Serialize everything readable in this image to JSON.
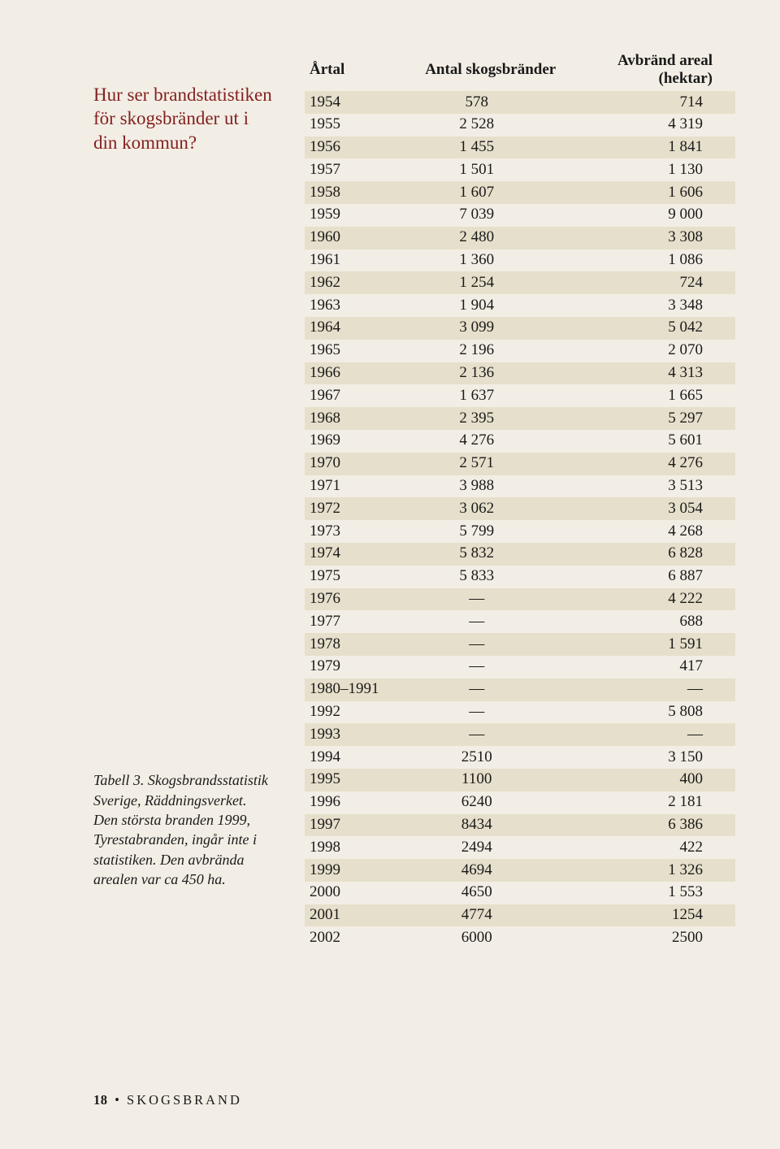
{
  "left": {
    "question": "Hur ser brand­statistiken för skogsbränder ut i din kommun?",
    "caption_html": "Tabell 3. Skogsbrands­statistik Sverige, Räddningsverket. Den största branden 1999, Tyrestabranden, ingår inte i statistiken. Den avbrända arealen var ca 450 ha."
  },
  "table": {
    "columns": [
      "Årtal",
      "Antal skogsbränder",
      "Avbränd areal (hektar)"
    ],
    "col_align": [
      "left",
      "center",
      "right"
    ],
    "header_background": "#f2eee5",
    "row_colors": {
      "odd": "#e6dfcb",
      "even": "#f2eee5"
    },
    "font_size": 19,
    "text_color": "#1a1a1a",
    "rows": [
      [
        "1954",
        "578",
        "714"
      ],
      [
        "1955",
        "2 528",
        "4 319"
      ],
      [
        "1956",
        "1 455",
        "1 841"
      ],
      [
        "1957",
        "1 501",
        "1 130"
      ],
      [
        "1958",
        "1 607",
        "1 606"
      ],
      [
        "1959",
        "7 039",
        "9 000"
      ],
      [
        "1960",
        "2 480",
        "3 308"
      ],
      [
        "1961",
        "1 360",
        "1 086"
      ],
      [
        "1962",
        "1 254",
        "724"
      ],
      [
        "1963",
        "1 904",
        "3 348"
      ],
      [
        "1964",
        "3 099",
        "5 042"
      ],
      [
        "1965",
        "2 196",
        "2 070"
      ],
      [
        "1966",
        "2 136",
        "4 313"
      ],
      [
        "1967",
        "1 637",
        "1 665"
      ],
      [
        "1968",
        "2 395",
        "5 297"
      ],
      [
        "1969",
        "4 276",
        "5 601"
      ],
      [
        "1970",
        "2 571",
        "4 276"
      ],
      [
        "1971",
        "3 988",
        "3 513"
      ],
      [
        "1972",
        "3 062",
        "3 054"
      ],
      [
        "1973",
        "5 799",
        "4 268"
      ],
      [
        "1974",
        "5 832",
        "6 828"
      ],
      [
        "1975",
        "5 833",
        "6 887"
      ],
      [
        "1976",
        "—",
        "4 222"
      ],
      [
        "1977",
        "—",
        "688"
      ],
      [
        "1978",
        "—",
        "1 591"
      ],
      [
        "1979",
        "—",
        "417"
      ],
      [
        "1980–1991",
        "—",
        "—"
      ],
      [
        "1992",
        "—",
        "5 808"
      ],
      [
        "1993",
        "—",
        "—"
      ],
      [
        "1994",
        "2510",
        "3 150"
      ],
      [
        "1995",
        "1100",
        "400"
      ],
      [
        "1996",
        "6240",
        "2 181"
      ],
      [
        "1997",
        "8434",
        "6 386"
      ],
      [
        "1998",
        "2494",
        "422"
      ],
      [
        "1999",
        "4694",
        "1 326"
      ],
      [
        "2000",
        "4650",
        "1 553"
      ],
      [
        "2001",
        "4774",
        "1254"
      ],
      [
        "2002",
        "6000",
        "2500"
      ]
    ]
  },
  "footer": {
    "page": "18",
    "separator": "•",
    "title": "SKOGSBRAND"
  },
  "styles": {
    "page_background": "#f2eee5",
    "question_color": "#841f1f",
    "question_fontsize": 23,
    "caption_fontsize": 18
  }
}
